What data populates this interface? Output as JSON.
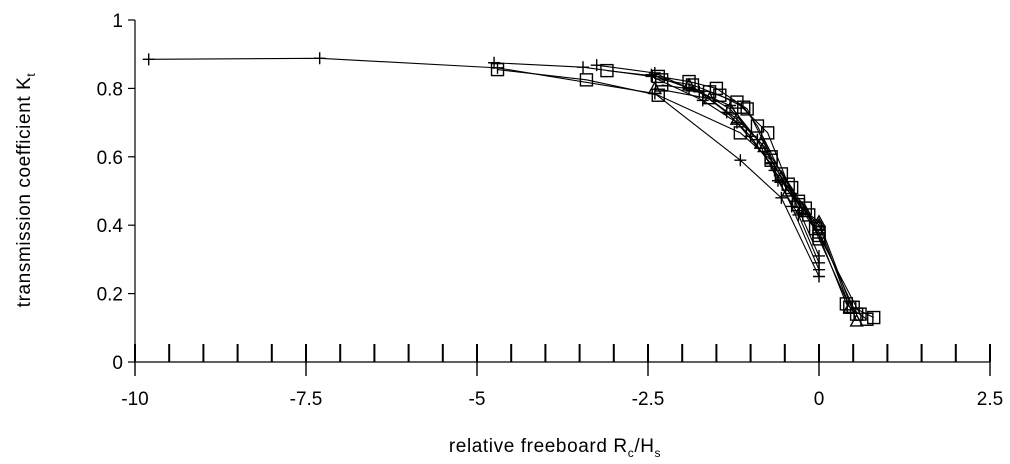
{
  "chart_data": {
    "type": "scatter",
    "title": "",
    "xlabel": {
      "main": "relative freeboard R",
      "sub1": "c",
      "mid": "/H",
      "sub2": "s"
    },
    "ylabel": {
      "main": "transmission coefficient K",
      "sub": "t"
    },
    "xlim": [
      -10,
      2.5
    ],
    "ylim": [
      0,
      1
    ],
    "x_ticks": [
      -10,
      -7.5,
      -5,
      -2.5,
      0,
      2.5
    ],
    "x_tick_labels": [
      "-10",
      "-7.5",
      "-5",
      "-2.5",
      "0",
      "2.5"
    ],
    "x_minor_step": 0.5,
    "y_ticks": [
      0,
      0.2,
      0.4,
      0.6,
      0.8,
      1
    ],
    "y_tick_labels": [
      "0",
      "0.2",
      "0.4",
      "0.6",
      "0.8",
      "1"
    ],
    "grid": false,
    "series": [
      {
        "marker": "plus",
        "points": [
          [
            -9.8,
            0.885
          ],
          [
            -7.3,
            0.888
          ],
          [
            -4.7,
            0.86
          ],
          [
            -2.4,
            0.785
          ],
          [
            -1.15,
            0.59
          ],
          [
            -0.55,
            0.48
          ],
          [
            0,
            0.25
          ]
        ]
      },
      {
        "marker": "plus",
        "points": [
          [
            -4.75,
            0.875
          ],
          [
            -3.45,
            0.862
          ],
          [
            -2.45,
            0.835
          ],
          [
            -1.7,
            0.765
          ],
          [
            -1.2,
            0.7
          ],
          [
            -0.7,
            0.58
          ],
          [
            -0.4,
            0.455
          ],
          [
            0,
            0.27
          ]
        ]
      },
      {
        "marker": "plus",
        "points": [
          [
            -3.25,
            0.868
          ],
          [
            -2.4,
            0.845
          ],
          [
            -1.9,
            0.8
          ],
          [
            -1.3,
            0.75
          ],
          [
            -0.9,
            0.65
          ],
          [
            -0.6,
            0.53
          ],
          [
            -0.3,
            0.43
          ],
          [
            0,
            0.29
          ]
        ]
      },
      {
        "marker": "plus",
        "points": [
          [
            -2.45,
            0.84
          ],
          [
            -1.75,
            0.79
          ],
          [
            -1.35,
            0.73
          ],
          [
            -1.0,
            0.66
          ],
          [
            -0.65,
            0.56
          ],
          [
            -0.35,
            0.47
          ],
          [
            0,
            0.31
          ]
        ]
      },
      {
        "marker": "square",
        "points": [
          [
            -4.7,
            0.855
          ],
          [
            -3.4,
            0.825
          ],
          [
            -2.35,
            0.78
          ],
          [
            -1.15,
            0.67
          ],
          [
            -0.7,
            0.59
          ],
          [
            -0.3,
            0.46
          ],
          [
            0,
            0.37
          ],
          [
            0.4,
            0.17
          ],
          [
            0.55,
            0.14
          ]
        ]
      },
      {
        "marker": "square",
        "points": [
          [
            -3.1,
            0.852
          ],
          [
            -2.35,
            0.835
          ],
          [
            -1.9,
            0.82
          ],
          [
            -1.5,
            0.8
          ],
          [
            -1.05,
            0.74
          ],
          [
            -0.7,
            0.6
          ],
          [
            -0.4,
            0.51
          ],
          [
            -0.15,
            0.43
          ],
          [
            0,
            0.38
          ],
          [
            0.5,
            0.16
          ],
          [
            0.8,
            0.13
          ]
        ]
      },
      {
        "marker": "square",
        "points": [
          [
            -2.3,
            0.825
          ],
          [
            -1.85,
            0.81
          ],
          [
            -1.45,
            0.78
          ],
          [
            -1.1,
            0.745
          ],
          [
            -0.9,
            0.69
          ],
          [
            -0.55,
            0.55
          ],
          [
            -0.3,
            0.47
          ],
          [
            -0.05,
            0.39
          ],
          [
            0.6,
            0.14
          ]
        ]
      },
      {
        "marker": "square",
        "points": [
          [
            -2.3,
            0.81
          ],
          [
            -1.6,
            0.79
          ],
          [
            -1.2,
            0.76
          ],
          [
            -0.75,
            0.67
          ],
          [
            -0.45,
            0.52
          ],
          [
            -0.2,
            0.45
          ],
          [
            0,
            0.36
          ],
          [
            0.45,
            0.16
          ],
          [
            0.7,
            0.125
          ]
        ]
      },
      {
        "marker": "triangle",
        "points": [
          [
            -2.4,
            0.8
          ],
          [
            -1.6,
            0.77
          ],
          [
            -1.2,
            0.71
          ],
          [
            -0.8,
            0.63
          ],
          [
            -0.45,
            0.5
          ],
          [
            -0.2,
            0.44
          ],
          [
            0,
            0.41
          ],
          [
            0.55,
            0.12
          ]
        ]
      },
      {
        "marker": "triangle",
        "points": [
          [
            -1.9,
            0.81
          ],
          [
            -1.3,
            0.74
          ],
          [
            -0.85,
            0.64
          ],
          [
            -0.55,
            0.54
          ],
          [
            -0.25,
            0.45
          ],
          [
            0,
            0.4
          ],
          [
            0.45,
            0.16
          ]
        ]
      }
    ]
  }
}
